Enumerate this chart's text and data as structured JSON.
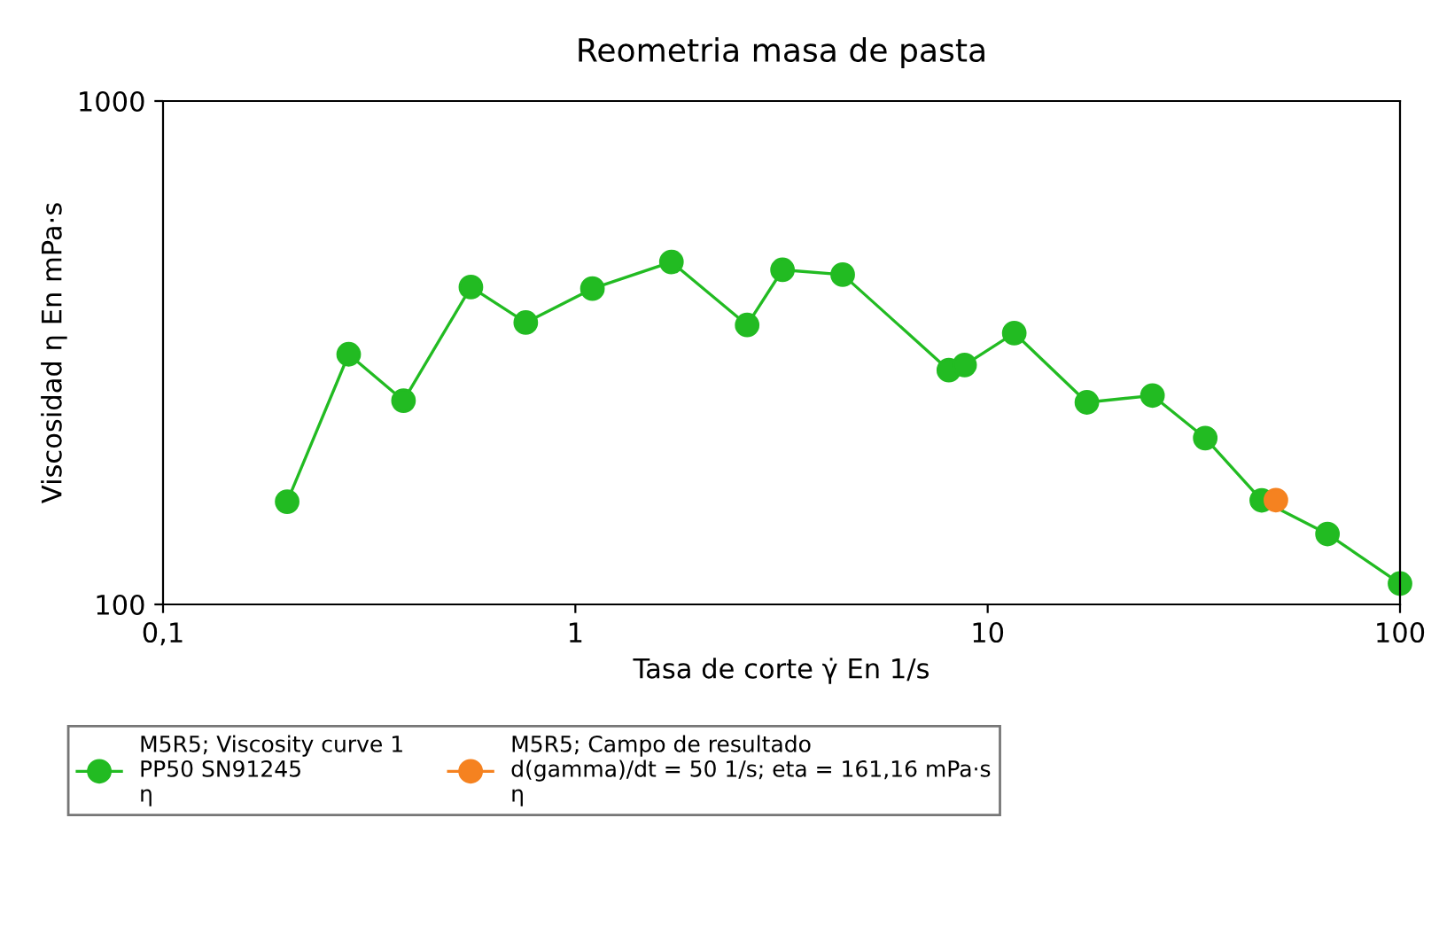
{
  "chart_data": {
    "type": "line",
    "title": "Reometria masa de pasta",
    "xlabel": "Tasa de corte γ̇ En 1/s",
    "ylabel": "Viscosidad η En mPa·s",
    "log": "xy",
    "xlim": [
      0.1,
      100
    ],
    "ylim": [
      100,
      1000
    ],
    "xticks": [
      {
        "value": 0.1,
        "label": "0,1"
      },
      1,
      10,
      100
    ],
    "yticks": [
      100,
      1000
    ],
    "grid": false,
    "legend": "bottom",
    "marker": "circle",
    "line_style": "solid",
    "series": [
      {
        "name": "M5R5; Viscosity curve 1\nPP50 SN91245\nη",
        "color": "#22bb22",
        "x": [
          0.2,
          0.282,
          0.383,
          0.558,
          0.758,
          1.1,
          1.71,
          2.61,
          3.18,
          4.45,
          8.05,
          8.79,
          11.6,
          17.4,
          25.1,
          33.7,
          46.2,
          66.7,
          100
        ],
        "values": [
          160,
          314,
          254,
          427,
          363,
          424,
          479,
          359,
          462,
          452,
          292,
          299,
          346,
          252,
          260,
          214,
          161,
          138,
          110
        ]
      },
      {
        "name": "M5R5; Campo de resultado\nd(gamma)/dt = 50 1/s; eta = 161,16 mPa·s\nη",
        "color": "#f58220",
        "x": [
          50
        ],
        "values": [
          161.16
        ]
      }
    ]
  }
}
